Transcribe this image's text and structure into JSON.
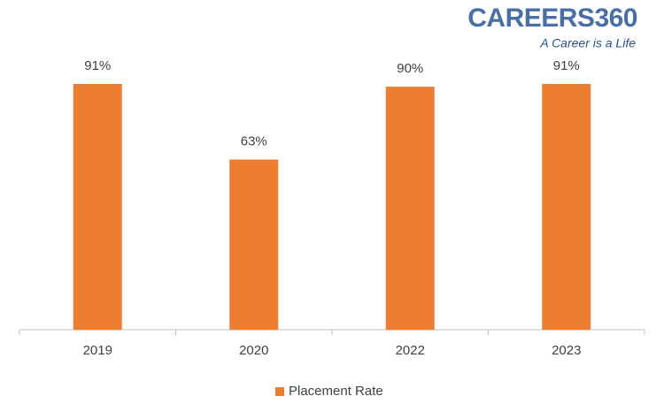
{
  "logo": {
    "name": "CAREERS360",
    "tagline": "A Career is a Life"
  },
  "chart_data": {
    "type": "bar",
    "categories": [
      "2019",
      "2020",
      "2022",
      "2023"
    ],
    "series": [
      {
        "name": "Placement Rate",
        "color": "#ed7d31",
        "values": [
          91,
          63,
          90,
          91
        ],
        "value_labels": [
          "91%",
          "63%",
          "90%",
          "91%"
        ]
      }
    ],
    "ylim": [
      0,
      100
    ]
  }
}
